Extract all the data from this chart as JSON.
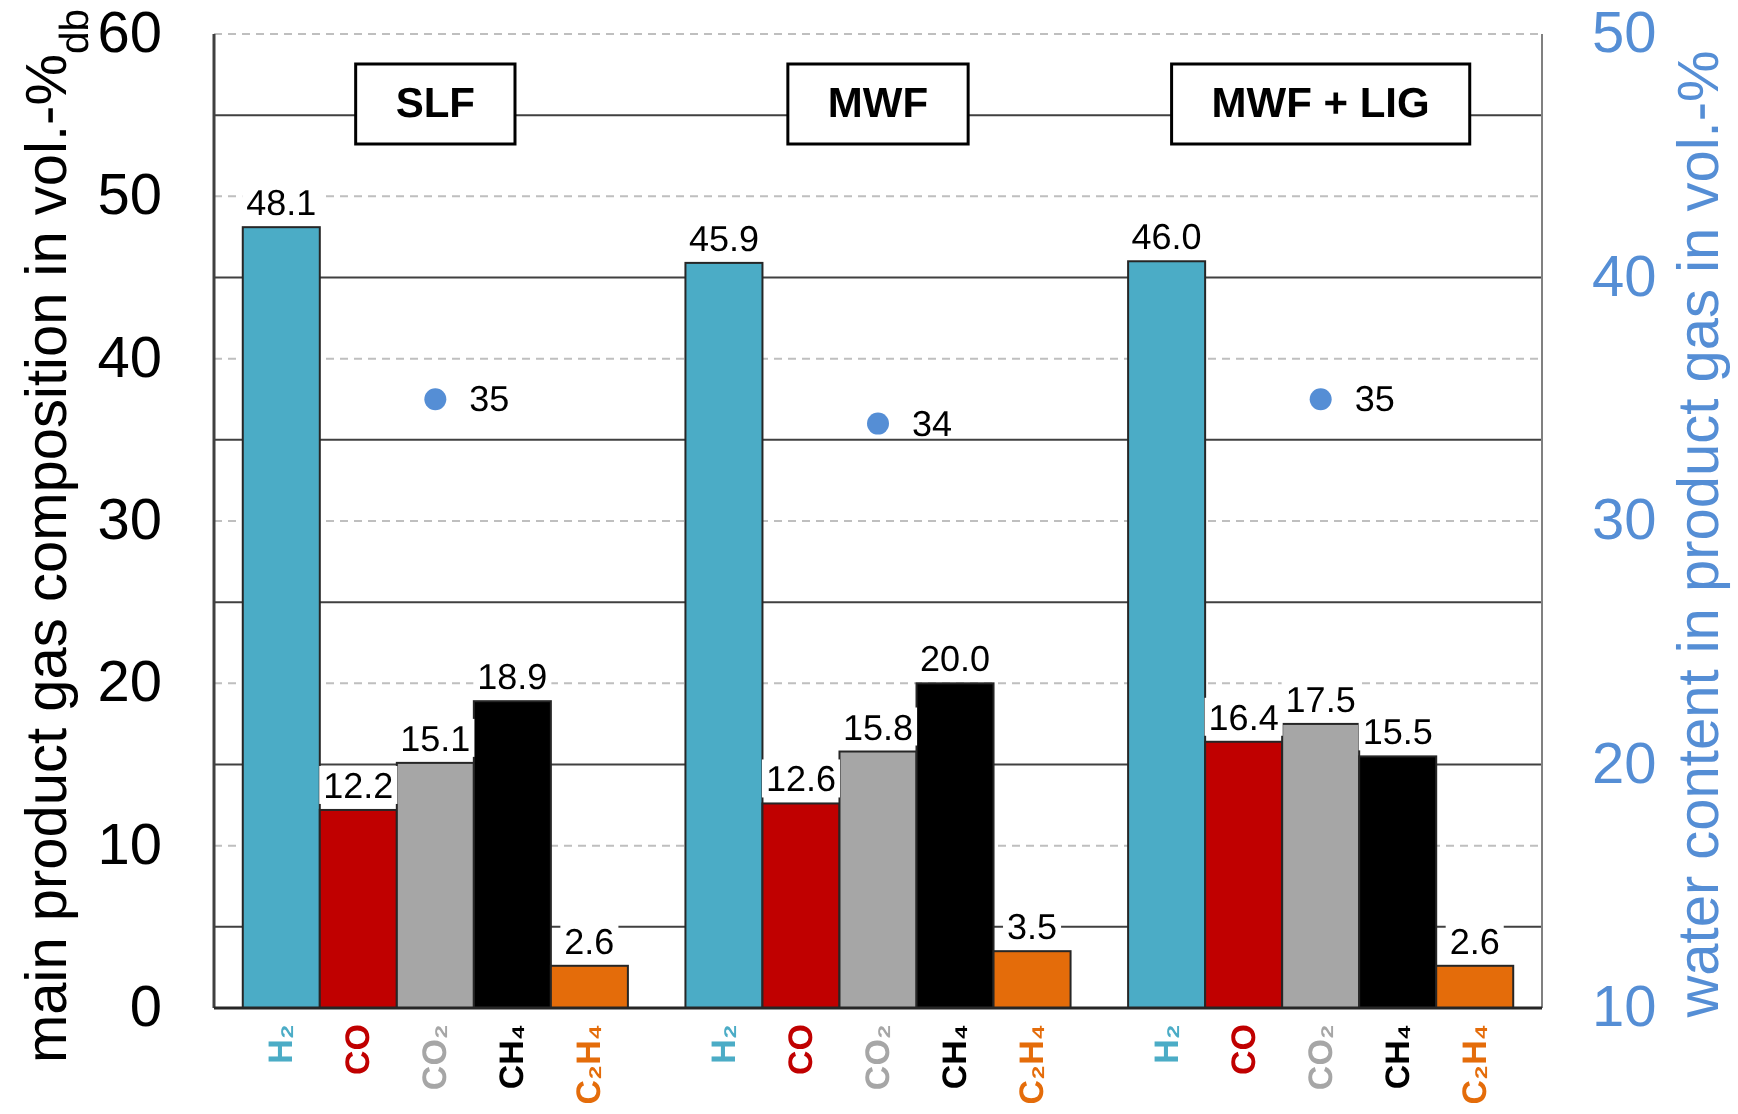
{
  "chart_data": {
    "type": "bar",
    "categories": [
      "SLF",
      "MWF",
      "MWF + LIG"
    ],
    "ylabel": "main product gas composition in vol.-%$_{db}$",
    "y2label": "water content in product gas in vol.-%",
    "ylim": [
      0,
      60
    ],
    "yticks": [
      0,
      {
        "value": 5,
        "label": null
      },
      10,
      {
        "value": 15,
        "label": null
      },
      20,
      {
        "value": 25,
        "label": null
      },
      30,
      {
        "value": 35,
        "label": null
      },
      40,
      {
        "value": 45,
        "label": null
      },
      50,
      {
        "value": 55,
        "label": null
      },
      60
    ],
    "y2lim": [
      10,
      50
    ],
    "y2ticks": [
      10,
      20,
      30,
      40,
      50
    ],
    "grid": "y",
    "series": [
      {
        "name": "H₂",
        "color": "#4bacc6",
        "values": [
          48.1,
          45.9,
          46.0
        ],
        "value_labels": [
          "48.1",
          "45.9",
          "46.0"
        ]
      },
      {
        "name": "CO",
        "color": "#c00000",
        "values": [
          12.2,
          12.6,
          16.4
        ],
        "value_labels": [
          "12.2",
          "12.6",
          "16.4"
        ]
      },
      {
        "name": "CO₂",
        "color": "#a6a6a6",
        "values": [
          15.1,
          15.8,
          17.5
        ],
        "value_labels": [
          "15.1",
          "15.8",
          "17.5"
        ]
      },
      {
        "name": "CH₄",
        "color": "#000000",
        "values": [
          18.9,
          20.0,
          15.5
        ],
        "value_labels": [
          "18.9",
          "20.0",
          "15.5"
        ]
      },
      {
        "name": "C₂H₄",
        "color": "#e46c0a",
        "values": [
          2.6,
          3.5,
          2.6
        ],
        "value_labels": [
          "2.6",
          "3.5",
          "2.6"
        ]
      },
      {
        "type": "scatter",
        "axis": "y2",
        "marker": "circle",
        "color": "#558ed5",
        "x": [
          "SLF",
          "MWF",
          "MWF + LIG"
        ],
        "values": [
          35,
          34,
          35
        ],
        "value_labels": [
          "35",
          "34",
          "35"
        ]
      }
    ]
  }
}
